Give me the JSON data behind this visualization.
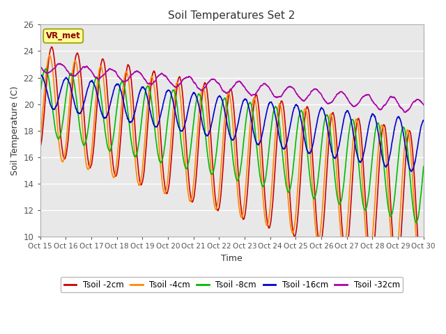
{
  "title": "Soil Temperatures Set 2",
  "xlabel": "Time",
  "ylabel": "Soil Temperature (C)",
  "ylim": [
    10,
    26
  ],
  "xlim": [
    0,
    360
  ],
  "x_ticks": [
    0,
    24,
    48,
    72,
    96,
    120,
    144,
    168,
    192,
    216,
    240,
    264,
    288,
    312,
    336,
    360
  ],
  "x_tick_labels": [
    "Oct 15",
    "Oct 16",
    "Oct 17",
    "Oct 18",
    "Oct 19",
    "Oct 20",
    "Oct 21",
    "Oct 22",
    "Oct 23",
    "Oct 24",
    "Oct 25",
    "Oct 26",
    "Oct 27",
    "Oct 28",
    "Oct 29",
    "Oct 30"
  ],
  "y_ticks": [
    10,
    12,
    14,
    16,
    18,
    20,
    22,
    24,
    26
  ],
  "colors": {
    "Tsoil -2cm": "#CC0000",
    "Tsoil -4cm": "#FF8800",
    "Tsoil -8cm": "#00BB00",
    "Tsoil -16cm": "#0000CC",
    "Tsoil -32cm": "#AA00AA"
  },
  "annotation_text": "VR_met",
  "background_color": "#E8E8E8",
  "figure_background": "#FFFFFF",
  "linewidth": 1.2
}
